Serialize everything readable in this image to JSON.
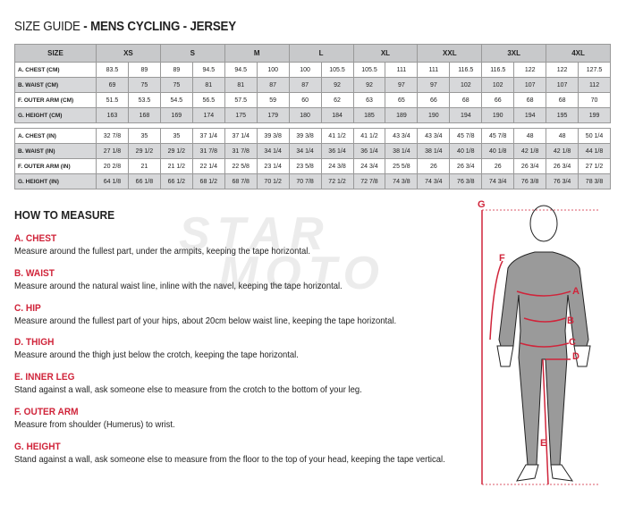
{
  "title": {
    "light": "SIZE GUIDE",
    "bold": " - MENS CYCLING - JERSEY"
  },
  "table": {
    "size_header": "SIZE",
    "sizes": [
      "XS",
      "S",
      "M",
      "L",
      "XL",
      "XXL",
      "3XL",
      "4XL"
    ],
    "cm_rows": [
      {
        "label": "A. CHEST (CM)",
        "values": [
          "83.5",
          "89",
          "89",
          "94.5",
          "94.5",
          "100",
          "100",
          "105.5",
          "105.5",
          "111",
          "111",
          "116.5",
          "116.5",
          "122",
          "122",
          "127.5"
        ]
      },
      {
        "label": "B. WAIST (CM)",
        "values": [
          "69",
          "75",
          "75",
          "81",
          "81",
          "87",
          "87",
          "92",
          "92",
          "97",
          "97",
          "102",
          "102",
          "107",
          "107",
          "112"
        ]
      },
      {
        "label": "F. OUTER ARM (CM)",
        "values": [
          "51.5",
          "53.5",
          "54.5",
          "56.5",
          "57.5",
          "59",
          "60",
          "62",
          "63",
          "65",
          "66",
          "68",
          "66",
          "68",
          "68",
          "70"
        ]
      },
      {
        "label": "G. HEIGHT (CM)",
        "values": [
          "163",
          "168",
          "169",
          "174",
          "175",
          "179",
          "180",
          "184",
          "185",
          "189",
          "190",
          "194",
          "190",
          "194",
          "195",
          "199"
        ]
      }
    ],
    "in_rows": [
      {
        "label": "A. CHEST (IN)",
        "values": [
          "32 7/8",
          "35",
          "35",
          "37 1/4",
          "37 1/4",
          "39 3/8",
          "39 3/8",
          "41 1/2",
          "41 1/2",
          "43 3/4",
          "43 3/4",
          "45 7/8",
          "45 7/8",
          "48",
          "48",
          "50 1/4"
        ]
      },
      {
        "label": "B. WAIST (IN)",
        "values": [
          "27 1/8",
          "29 1/2",
          "29 1/2",
          "31 7/8",
          "31 7/8",
          "34 1/4",
          "34 1/4",
          "36 1/4",
          "36 1/4",
          "38 1/4",
          "38 1/4",
          "40 1/8",
          "40 1/8",
          "42 1/8",
          "42 1/8",
          "44 1/8"
        ]
      },
      {
        "label": "F. OUTER ARM (IN)",
        "values": [
          "20 2/8",
          "21",
          "21 1/2",
          "22 1/4",
          "22 5/8",
          "23 1/4",
          "23 5/8",
          "24 3/8",
          "24 3/4",
          "25 5/8",
          "26",
          "26 3/4",
          "26",
          "26 3/4",
          "26 3/4",
          "27 1/2"
        ]
      },
      {
        "label": "G. HEIGHT (IN)",
        "values": [
          "64 1/8",
          "66 1/8",
          "66 1/2",
          "68 1/2",
          "68 7/8",
          "70 1/2",
          "70 7/8",
          "72 1/2",
          "72 7/8",
          "74 3/8",
          "74 3/4",
          "76 3/8",
          "74 3/4",
          "76 3/8",
          "76 3/4",
          "78 3/8"
        ]
      }
    ]
  },
  "how_title": "HOW TO MEASURE",
  "sections": [
    {
      "title": "A. CHEST",
      "text": "Measure around the fullest part, under the armpits, keeping the tape horizontal."
    },
    {
      "title": "B. WAIST",
      "text": "Measure around the natural waist line, inline with the navel, keeping the tape horizontal."
    },
    {
      "title": "C. HIP",
      "text": "Measure around the fullest part of your hips, about 20cm below waist line, keeping the tape horizontal."
    },
    {
      "title": "D. THIGH",
      "text": "Measure around the thigh just below the crotch, keeping the tape horizontal."
    },
    {
      "title": "E. INNER LEG",
      "text": "Stand against a wall, ask someone else to measure from the crotch to the bottom of your leg."
    },
    {
      "title": "F. OUTER ARM",
      "text": "Measure from shoulder (Humerus) to wrist."
    },
    {
      "title": "G. HEIGHT",
      "text": "Stand against a wall, ask someone else to measure from the floor to the top of your head, keeping the tape vertical."
    }
  ],
  "watermark": "STAR MOTO",
  "figure_labels": [
    "G",
    "F",
    "A",
    "B",
    "C",
    "D",
    "E"
  ],
  "colors": {
    "accent": "#d0243a",
    "header_bg": "#c8c9cb",
    "row_alt": "#d7d8da",
    "body": "#9a9a9a"
  }
}
